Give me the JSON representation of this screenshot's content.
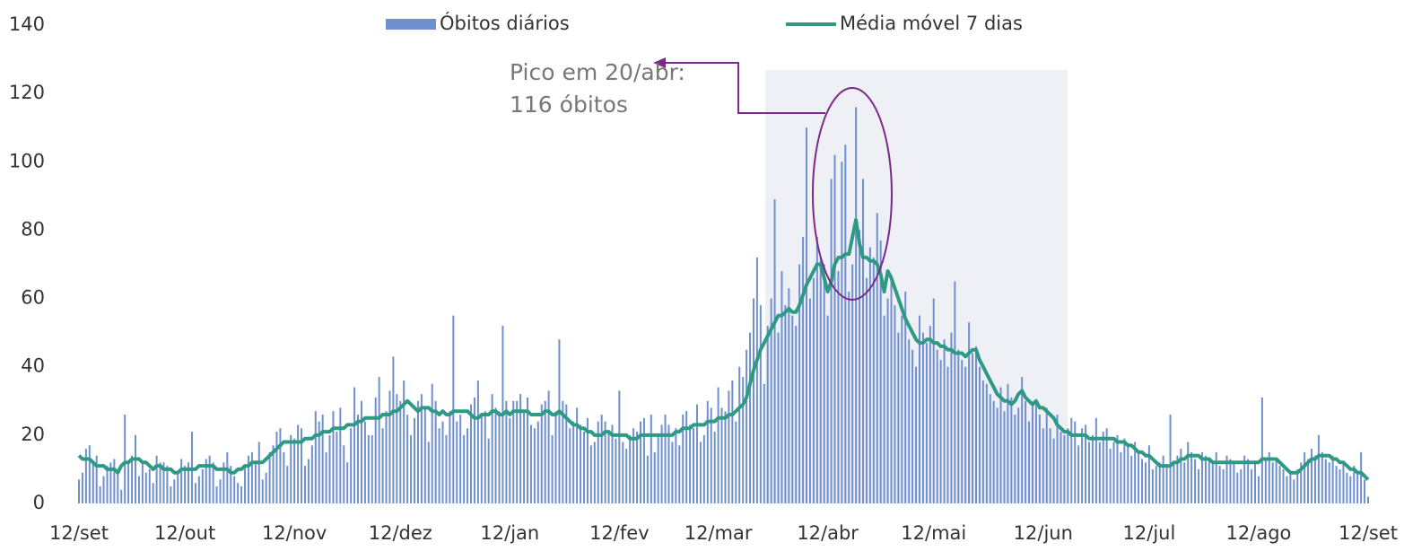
{
  "chart_data": {
    "type": "bar",
    "annotation": [
      "Pico em 20/abr:",
      "116 óbitos"
    ],
    "categories": [
      "12/set",
      null,
      null,
      null,
      null,
      null,
      null,
      null,
      null,
      null,
      null,
      null,
      null,
      null,
      null,
      null,
      null,
      null,
      null,
      null,
      null,
      null,
      null,
      null,
      null,
      null,
      null,
      null,
      null,
      null,
      "12/out",
      null,
      null,
      null,
      null,
      null,
      null,
      null,
      null,
      null,
      null,
      null,
      null,
      null,
      null,
      null,
      null,
      null,
      null,
      null,
      null,
      null,
      null,
      null,
      null,
      null,
      null,
      null,
      null,
      null,
      null,
      "12/nov",
      null,
      null,
      null,
      null,
      null,
      null,
      null,
      null,
      null,
      null,
      null,
      null,
      null,
      null,
      null,
      null,
      null,
      null,
      null,
      null,
      null,
      null,
      null,
      null,
      null,
      null,
      null,
      null,
      null,
      "12/dez",
      null,
      null,
      null,
      null,
      null,
      null,
      null,
      null,
      null,
      null,
      null,
      null,
      null,
      null,
      null,
      null,
      null,
      null,
      null,
      null,
      null,
      null,
      null,
      null,
      null,
      null,
      null,
      null,
      null,
      null,
      "12/jan",
      null,
      null,
      null,
      null,
      null,
      null,
      null,
      null,
      null,
      null,
      null,
      null,
      null,
      null,
      null,
      null,
      null,
      null,
      null,
      null,
      null,
      null,
      null,
      null,
      null,
      null,
      null,
      null,
      null,
      null,
      "12/fev",
      null,
      null,
      null,
      null,
      null,
      null,
      null,
      null,
      null,
      null,
      null,
      null,
      null,
      null,
      null,
      null,
      null,
      null,
      null,
      null,
      null,
      null,
      null,
      null,
      null,
      null,
      null,
      "12/mar",
      null,
      null,
      null,
      null,
      null,
      null,
      null,
      null,
      null,
      null,
      null,
      null,
      null,
      null,
      null,
      null,
      null,
      null,
      null,
      null,
      null,
      null,
      null,
      null,
      null,
      null,
      null,
      null,
      null,
      null,
      "12/abr",
      null,
      null,
      null,
      null,
      null,
      null,
      null,
      null,
      null,
      null,
      null,
      null,
      null,
      null,
      null,
      null,
      null,
      null,
      null,
      null,
      null,
      null,
      null,
      null,
      null,
      null,
      null,
      null,
      null,
      "12/mai",
      null,
      null,
      null,
      null,
      null,
      null,
      null,
      null,
      null,
      null,
      null,
      null,
      null,
      null,
      null,
      null,
      null,
      null,
      null,
      null,
      null,
      null,
      null,
      null,
      null,
      null,
      null,
      null,
      null,
      null,
      "12/jun",
      null,
      null,
      null,
      null,
      null,
      null,
      null,
      null,
      null,
      null,
      null,
      null,
      null,
      null,
      null,
      null,
      null,
      null,
      null,
      null,
      null,
      null,
      null,
      null,
      null,
      null,
      null,
      null,
      null,
      "12/jul",
      null,
      null,
      null,
      null,
      null,
      null,
      null,
      null,
      null,
      null,
      null,
      null,
      null,
      null,
      null,
      null,
      null,
      null,
      null,
      null,
      null,
      null,
      null,
      null,
      null,
      null,
      null,
      null,
      null,
      null,
      "12/ago",
      null,
      null,
      null,
      null,
      null,
      null,
      null,
      null,
      null,
      null,
      null,
      null,
      null,
      null,
      null,
      null,
      null,
      null,
      null,
      null,
      null,
      null,
      null,
      null,
      null,
      null,
      null,
      null,
      null,
      null,
      "12/set"
    ],
    "series": [
      {
        "name": "Óbitos diários",
        "type": "bar",
        "color": "#6f8fcf",
        "values": [
          7,
          9,
          16,
          17,
          12,
          14,
          5,
          8,
          11,
          12,
          13,
          9,
          4,
          26,
          12,
          14,
          20,
          8,
          12,
          9,
          10,
          6,
          14,
          12,
          12,
          11,
          5,
          7,
          9,
          13,
          11,
          12,
          21,
          6,
          8,
          10,
          13,
          14,
          12,
          5,
          7,
          12,
          15,
          11,
          8,
          6,
          5,
          11,
          14,
          15,
          12,
          18,
          7,
          9,
          15,
          17,
          21,
          22,
          15,
          11,
          20,
          19,
          23,
          22,
          11,
          13,
          17,
          27,
          24,
          26,
          15,
          20,
          27,
          21,
          28,
          17,
          12,
          22,
          34,
          26,
          30,
          24,
          20,
          20,
          31,
          37,
          22,
          27,
          33,
          43,
          32,
          30,
          36,
          26,
          20,
          25,
          30,
          32,
          28,
          18,
          35,
          30,
          22,
          24,
          20,
          27,
          55,
          24,
          26,
          20,
          22,
          29,
          31,
          36,
          26,
          27,
          19,
          32,
          28,
          27,
          52,
          30,
          25,
          30,
          30,
          32,
          27,
          31,
          23,
          22,
          24,
          29,
          30,
          33,
          20,
          27,
          48,
          30,
          29,
          22,
          24,
          28,
          23,
          21,
          25,
          17,
          18,
          24,
          26,
          24,
          21,
          23,
          19,
          33,
          18,
          16,
          20,
          22,
          21,
          24,
          25,
          14,
          26,
          15,
          20,
          23,
          26,
          23,
          18,
          22,
          17,
          26,
          27,
          23,
          22,
          29,
          18,
          20,
          30,
          28,
          21,
          34,
          28,
          27,
          33,
          36,
          24,
          40,
          37,
          45,
          50,
          60,
          72,
          58,
          35,
          52,
          60,
          89,
          50,
          68,
          58,
          63,
          55,
          52,
          70,
          78,
          110,
          60,
          66,
          78,
          72,
          70,
          55,
          95,
          102,
          68,
          100,
          105,
          62,
          70,
          116,
          80,
          95,
          66,
          75,
          72,
          85,
          77,
          55,
          60,
          67,
          58,
          50,
          55,
          62,
          48,
          45,
          40,
          55,
          50,
          47,
          52,
          60,
          45,
          42,
          48,
          40,
          50,
          65,
          45,
          42,
          40,
          53,
          44,
          46,
          40,
          36,
          35,
          32,
          30,
          28,
          34,
          27,
          35,
          31,
          26,
          28,
          37,
          30,
          24,
          29,
          30,
          26,
          22,
          28,
          22,
          19,
          26,
          21,
          20,
          22,
          25,
          24,
          17,
          22,
          23,
          18,
          20,
          25,
          18,
          21,
          22,
          16,
          18,
          20,
          15,
          19,
          17,
          14,
          18,
          15,
          13,
          12,
          17,
          10,
          11,
          12,
          14,
          11,
          26,
          12,
          14,
          16,
          12,
          18,
          15,
          13,
          10,
          15,
          14,
          13,
          12,
          15,
          11,
          10,
          14,
          13,
          12,
          9,
          10,
          14,
          13,
          10,
          12,
          8,
          31,
          13,
          15,
          12,
          13,
          11,
          10,
          8,
          9,
          7,
          10,
          12,
          15,
          13,
          16,
          14,
          20,
          15,
          13,
          12,
          14,
          11,
          10,
          12,
          9,
          8,
          11,
          9,
          15,
          7,
          2
        ]
      },
      {
        "name": "Média móvel 7 dias",
        "type": "line",
        "color": "#2e9a84",
        "values": [
          14,
          13,
          13,
          13,
          12,
          11,
          11,
          11,
          10,
          10,
          10,
          9,
          11,
          12,
          12,
          13,
          13,
          13,
          12,
          12,
          11,
          10,
          11,
          11,
          10,
          10,
          10,
          9,
          9,
          10,
          10,
          10,
          10,
          10,
          11,
          11,
          11,
          11,
          11,
          10,
          10,
          10,
          10,
          9,
          9,
          10,
          10,
          11,
          11,
          12,
          12,
          12,
          12,
          13,
          14,
          15,
          16,
          17,
          18,
          18,
          18,
          18,
          18,
          18,
          19,
          19,
          19,
          20,
          20,
          21,
          21,
          21,
          22,
          22,
          22,
          22,
          23,
          23,
          23,
          24,
          24,
          25,
          25,
          25,
          25,
          25,
          26,
          26,
          26,
          27,
          27,
          28,
          29,
          30,
          29,
          28,
          27,
          28,
          28,
          28,
          27,
          27,
          26,
          27,
          26,
          26,
          27,
          27,
          27,
          27,
          27,
          26,
          25,
          25,
          26,
          26,
          26,
          27,
          27,
          26,
          26,
          27,
          26,
          27,
          27,
          27,
          27,
          27,
          26,
          26,
          26,
          26,
          27,
          27,
          26,
          26,
          27,
          26,
          25,
          24,
          23,
          23,
          22,
          22,
          21,
          21,
          20,
          20,
          20,
          21,
          21,
          20,
          20,
          20,
          20,
          20,
          19,
          19,
          19,
          20,
          20,
          20,
          20,
          20,
          20,
          20,
          20,
          20,
          20,
          21,
          21,
          22,
          22,
          22,
          23,
          23,
          23,
          23,
          24,
          24,
          24,
          25,
          25,
          25,
          26,
          26,
          27,
          28,
          29,
          31,
          35,
          39,
          42,
          45,
          47,
          49,
          51,
          53,
          55,
          55,
          56,
          57,
          56,
          56,
          58,
          61,
          64,
          66,
          68,
          70,
          70,
          66,
          62,
          65,
          70,
          72,
          72,
          73,
          73,
          78,
          83,
          76,
          72,
          72,
          71,
          71,
          70,
          67,
          62,
          68,
          66,
          63,
          60,
          57,
          54,
          52,
          50,
          48,
          47,
          47,
          48,
          48,
          47,
          47,
          46,
          46,
          45,
          45,
          44,
          44,
          44,
          43,
          44,
          45,
          45,
          42,
          40,
          38,
          36,
          34,
          32,
          31,
          30,
          30,
          29,
          30,
          32,
          33,
          31,
          30,
          29,
          30,
          28,
          28,
          27,
          26,
          25,
          23,
          22,
          21,
          21,
          20,
          20,
          20,
          20,
          20,
          19,
          19,
          19,
          19,
          19,
          19,
          19,
          19,
          18,
          18,
          18,
          17,
          17,
          16,
          15,
          15,
          14,
          14,
          13,
          12,
          11,
          11,
          11,
          11,
          12,
          12,
          13,
          13,
          14,
          14,
          14,
          14,
          13,
          13,
          13,
          12,
          12,
          12,
          12,
          12,
          12,
          12,
          12,
          12,
          12,
          12,
          12,
          12,
          12,
          13,
          13,
          13,
          13,
          13,
          12,
          11,
          10,
          9,
          9,
          9,
          10,
          11,
          12,
          13,
          13,
          14,
          14,
          14,
          14,
          13,
          13,
          12,
          12,
          11,
          10,
          10,
          9,
          9,
          8,
          7
        ]
      }
    ],
    "ylim": [
      0,
      140
    ],
    "yticks": [
      0,
      20,
      40,
      60,
      80,
      100,
      120,
      140
    ],
    "grid": false
  }
}
